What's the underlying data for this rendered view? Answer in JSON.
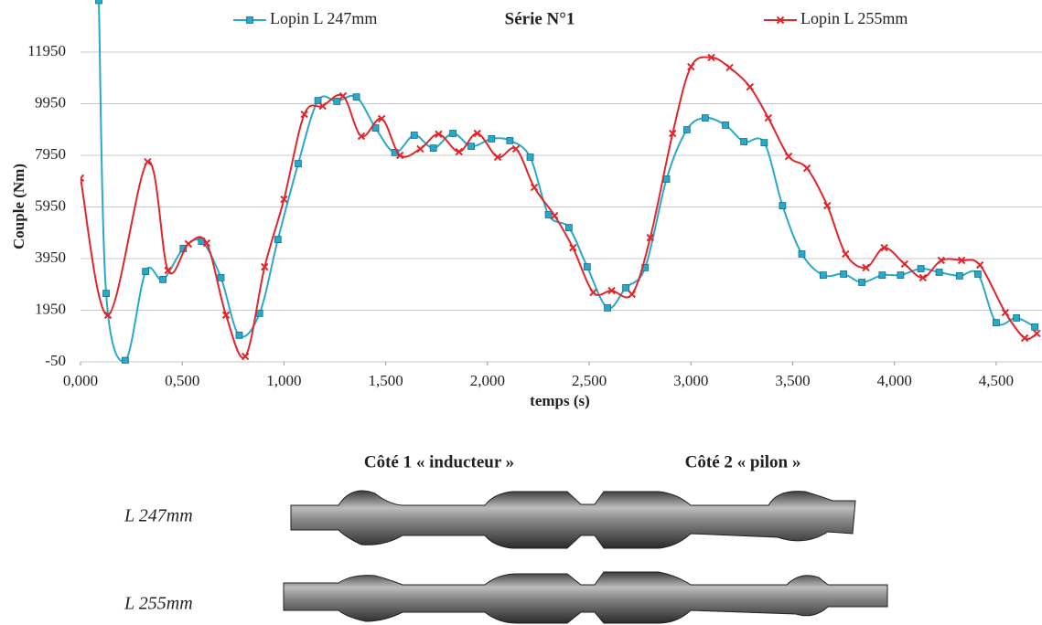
{
  "chart_data": {
    "type": "line",
    "title": "Série N°1",
    "x_label": "temps (s)",
    "y_label": "Couple (Nm)",
    "xlim": [
      0,
      4.7
    ],
    "ylim": [
      -50,
      13950
    ],
    "xticks": [
      {
        "value": 0,
        "label": "0,000"
      },
      {
        "value": 0.5,
        "label": "0,500"
      },
      {
        "value": 1,
        "label": "1,000"
      },
      {
        "value": 1.5,
        "label": "1,500"
      },
      {
        "value": 2,
        "label": "2,000"
      },
      {
        "value": 2.5,
        "label": "2,500"
      },
      {
        "value": 3,
        "label": "3,000"
      },
      {
        "value": 3.5,
        "label": "3,500"
      },
      {
        "value": 4,
        "label": "4,000"
      },
      {
        "value": 4.5,
        "label": "4,500"
      }
    ],
    "yticks": [
      -50,
      1950,
      3950,
      5950,
      7950,
      9950,
      11950
    ],
    "grid": true,
    "smooth": true,
    "series": [
      {
        "name": "Lopin L 247mm",
        "color": "#29a9c9",
        "marker": "square",
        "x": [
          0.09,
          0.126,
          0.22,
          0.32,
          0.405,
          0.505,
          0.595,
          0.69,
          0.78,
          0.88,
          0.97,
          1.07,
          1.167,
          1.26,
          1.356,
          1.45,
          1.545,
          1.64,
          1.734,
          1.83,
          1.92,
          2.02,
          2.11,
          2.21,
          2.3,
          2.4,
          2.49,
          2.59,
          2.68,
          2.775,
          2.88,
          2.98,
          3.07,
          3.17,
          3.26,
          3.36,
          3.45,
          3.545,
          3.65,
          3.75,
          3.84,
          3.94,
          4.03,
          4.13,
          4.22,
          4.32,
          4.41,
          4.5,
          4.6,
          4.69
        ],
        "values": [
          13950,
          2600,
          0,
          3450,
          3140,
          4340,
          4620,
          3210,
          980,
          1830,
          4690,
          7630,
          10070,
          10040,
          10210,
          9010,
          8060,
          8730,
          8230,
          8800,
          8300,
          8590,
          8520,
          7880,
          5650,
          5150,
          3630,
          2040,
          2820,
          3600,
          7030,
          8940,
          9400,
          9120,
          8480,
          8440,
          6000,
          4130,
          3310,
          3350,
          3030,
          3310,
          3310,
          3560,
          3420,
          3280,
          3350,
          1470,
          1650,
          1300
        ]
      },
      {
        "name": "Lopin L 255mm",
        "color": "#e0262b",
        "marker": "x",
        "x": [
          0,
          0.135,
          0.33,
          0.43,
          0.53,
          0.62,
          0.715,
          0.81,
          0.905,
          1.0,
          1.1,
          1.19,
          1.29,
          1.38,
          1.48,
          1.57,
          1.67,
          1.76,
          1.86,
          1.95,
          2.05,
          2.14,
          2.23,
          2.33,
          2.42,
          2.52,
          2.61,
          2.71,
          2.8,
          2.91,
          3.0,
          3.1,
          3.19,
          3.29,
          3.38,
          3.48,
          3.57,
          3.67,
          3.76,
          3.86,
          3.95,
          4.05,
          4.14,
          4.23,
          4.33,
          4.42,
          4.545,
          4.64,
          4.7
        ],
        "values": [
          7070,
          1760,
          7700,
          3490,
          4520,
          4550,
          1760,
          160,
          3630,
          6250,
          9540,
          9860,
          10250,
          8690,
          9370,
          7950,
          8200,
          8770,
          8090,
          8800,
          7880,
          8200,
          6710,
          5610,
          4370,
          2640,
          2710,
          2570,
          4760,
          8800,
          11380,
          11740,
          11350,
          10600,
          9400,
          7910,
          7450,
          6000,
          4130,
          3600,
          4370,
          3740,
          3210,
          3880,
          3880,
          3700,
          1860,
          870,
          1050
        ]
      }
    ]
  },
  "photo": {
    "side_labels": [
      "Côté 1 « inducteur »",
      "Côté 2 « pilon »"
    ],
    "row_labels": [
      "L 247mm",
      "L 255mm"
    ]
  }
}
